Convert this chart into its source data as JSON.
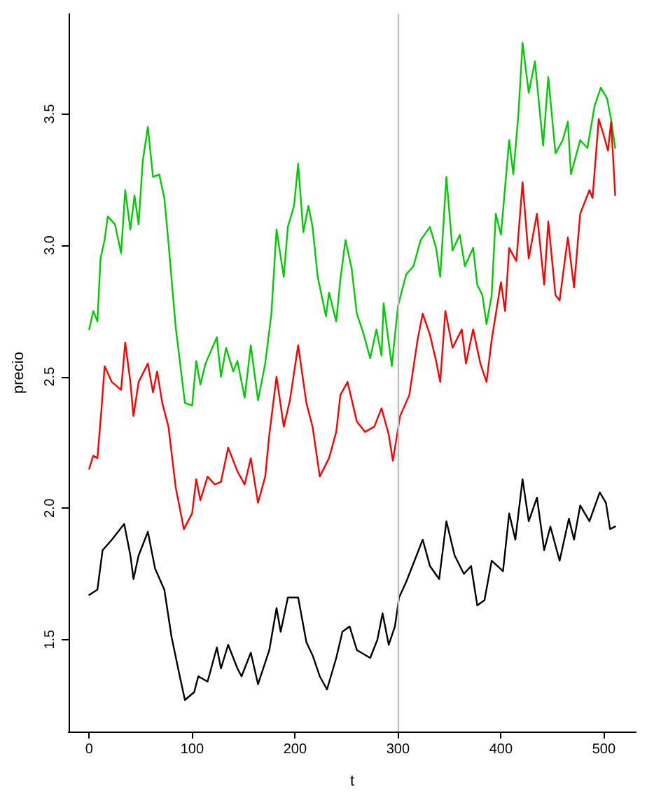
{
  "chart_data": {
    "type": "line",
    "xlabel": "t",
    "ylabel": "precio",
    "xlim": [
      -20,
      531
    ],
    "ylim": [
      1.15,
      3.88
    ],
    "xticks": [
      0,
      100,
      200,
      300,
      400,
      500
    ],
    "yticks": [
      1.5,
      {
        "value": 2,
        "label": "2.0"
      },
      2.5,
      {
        "value": 3,
        "label": "3.0"
      },
      3.5
    ],
    "marker": "none",
    "line_style": "solid",
    "ref_lines": [
      {
        "axis": "x",
        "value": 300,
        "color": "#bebebe"
      }
    ],
    "series": [
      {
        "color": "#00cd00",
        "x": [
          0,
          4,
          8,
          11,
          15,
          18,
          25,
          31,
          35,
          40,
          44,
          48,
          52,
          57,
          62,
          68,
          73,
          77,
          84,
          93,
          100,
          104,
          108,
          113,
          124,
          128,
          133,
          140,
          144,
          151,
          157,
          164,
          171,
          177,
          182,
          189,
          193,
          199,
          203,
          208,
          213,
          217,
          222,
          230,
          233,
          240,
          244,
          249,
          255,
          260,
          266,
          273,
          279,
          284,
          286,
          294,
          300,
          308,
          315,
          322,
          331,
          337,
          341,
          347,
          353,
          360,
          365,
          373,
          377,
          382,
          386,
          391,
          395,
          400,
          408,
          412,
          417,
          421,
          427,
          433,
          441,
          446,
          453,
          460,
          465,
          468,
          477,
          484,
          491,
          497,
          503,
          507,
          511
        ],
        "values": [
          2.68,
          2.75,
          2.71,
          2.95,
          3.02,
          3.11,
          3.08,
          2.97,
          3.21,
          3.06,
          3.19,
          3.08,
          3.32,
          3.45,
          3.26,
          3.27,
          3.18,
          3.01,
          2.69,
          2.4,
          2.39,
          2.56,
          2.47,
          2.55,
          2.65,
          2.5,
          2.61,
          2.52,
          2.56,
          2.42,
          2.62,
          2.41,
          2.55,
          2.74,
          3.06,
          2.88,
          3.07,
          3.15,
          3.31,
          3.05,
          3.15,
          3.07,
          2.88,
          2.73,
          2.82,
          2.71,
          2.87,
          3.02,
          2.91,
          2.74,
          2.67,
          2.57,
          2.68,
          2.58,
          2.78,
          2.54,
          2.77,
          2.89,
          2.92,
          3.02,
          3.07,
          2.99,
          2.88,
          3.26,
          2.98,
          3.04,
          2.92,
          2.99,
          2.85,
          2.81,
          2.7,
          2.81,
          3.12,
          3.04,
          3.4,
          3.27,
          3.5,
          3.77,
          3.58,
          3.7,
          3.38,
          3.64,
          3.35,
          3.4,
          3.47,
          3.27,
          3.4,
          3.37,
          3.53,
          3.6,
          3.56,
          3.48,
          3.37
        ]
      },
      {
        "color": "#ff0000",
        "x": [
          0,
          4,
          8,
          12,
          15,
          22,
          31,
          35,
          40,
          43,
          48,
          57,
          62,
          66,
          71,
          77,
          84,
          92,
          100,
          104,
          108,
          115,
          122,
          128,
          135,
          144,
          151,
          157,
          164,
          171,
          175,
          182,
          189,
          195,
          203,
          211,
          217,
          224,
          233,
          240,
          244,
          251,
          260,
          268,
          277,
          284,
          291,
          295,
          302,
          311,
          319,
          324,
          331,
          337,
          341,
          346,
          353,
          362,
          366,
          373,
          380,
          386,
          391,
          400,
          404,
          408,
          415,
          421,
          427,
          435,
          442,
          446,
          453,
          457,
          465,
          471,
          477,
          486,
          489,
          495,
          499,
          504,
          507,
          511
        ],
        "values": [
          2.15,
          2.2,
          2.19,
          2.38,
          2.54,
          2.48,
          2.45,
          2.63,
          2.48,
          2.35,
          2.48,
          2.55,
          2.44,
          2.52,
          2.4,
          2.31,
          2.08,
          1.92,
          1.98,
          2.11,
          2.03,
          2.12,
          2.09,
          2.1,
          2.23,
          2.14,
          2.09,
          2.19,
          2.02,
          2.12,
          2.28,
          2.5,
          2.31,
          2.41,
          2.62,
          2.4,
          2.31,
          2.12,
          2.19,
          2.29,
          2.43,
          2.48,
          2.33,
          2.29,
          2.31,
          2.38,
          2.28,
          2.18,
          2.35,
          2.43,
          2.64,
          2.74,
          2.66,
          2.56,
          2.48,
          2.75,
          2.61,
          2.68,
          2.55,
          2.68,
          2.55,
          2.48,
          2.64,
          2.86,
          2.75,
          2.99,
          2.94,
          3.24,
          2.95,
          3.12,
          2.85,
          3.09,
          2.81,
          2.79,
          3.03,
          2.84,
          3.12,
          3.21,
          3.18,
          3.48,
          3.43,
          3.36,
          3.47,
          3.19
        ]
      },
      {
        "color": "#000000",
        "x": [
          0,
          8,
          13,
          22,
          34,
          40,
          43,
          48,
          57,
          64,
          73,
          80,
          88,
          93,
          102,
          106,
          115,
          124,
          128,
          135,
          144,
          148,
          157,
          164,
          175,
          182,
          186,
          193,
          203,
          211,
          217,
          224,
          231,
          240,
          246,
          253,
          260,
          273,
          280,
          285,
          291,
          297,
          301,
          308,
          317,
          324,
          331,
          340,
          347,
          355,
          364,
          371,
          377,
          384,
          391,
          402,
          408,
          414,
          421,
          427,
          435,
          442,
          448,
          457,
          466,
          471,
          477,
          486,
          496,
          502,
          506,
          511
        ],
        "values": [
          1.67,
          1.69,
          1.84,
          1.88,
          1.94,
          1.82,
          1.73,
          1.82,
          1.91,
          1.77,
          1.69,
          1.51,
          1.36,
          1.27,
          1.3,
          1.36,
          1.34,
          1.47,
          1.39,
          1.48,
          1.39,
          1.36,
          1.45,
          1.33,
          1.46,
          1.62,
          1.53,
          1.66,
          1.66,
          1.49,
          1.44,
          1.36,
          1.31,
          1.43,
          1.53,
          1.55,
          1.46,
          1.43,
          1.5,
          1.6,
          1.48,
          1.55,
          1.66,
          1.72,
          1.81,
          1.88,
          1.78,
          1.73,
          1.95,
          1.82,
          1.75,
          1.78,
          1.63,
          1.65,
          1.8,
          1.76,
          1.98,
          1.88,
          2.11,
          1.95,
          2.04,
          1.84,
          1.93,
          1.8,
          1.96,
          1.88,
          2.01,
          1.95,
          2.06,
          2.02,
          1.92,
          1.93
        ]
      }
    ]
  }
}
